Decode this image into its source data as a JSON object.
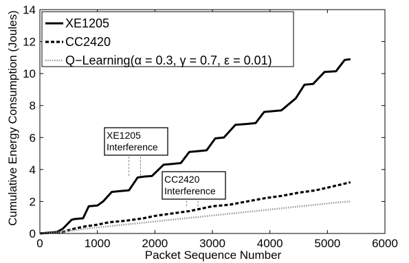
{
  "chart_data": {
    "type": "line",
    "xlabel": "Packet Sequence Number",
    "ylabel": "Cumulative Energy Consumption (Joules)",
    "xlim": [
      0,
      6000
    ],
    "ylim": [
      0,
      14
    ],
    "xticks": [
      0,
      1000,
      2000,
      3000,
      4000,
      5000,
      6000
    ],
    "yticks": [
      0,
      2,
      4,
      6,
      8,
      10,
      12,
      14
    ],
    "grid": false,
    "legend_position": "top-left",
    "series": [
      {
        "name": "XE1205",
        "style": "solid",
        "color": "#000000",
        "x": [
          0,
          300,
          400,
          550,
          600,
          750,
          850,
          1000,
          1100,
          1250,
          1400,
          1550,
          1700,
          1800,
          1950,
          2150,
          2300,
          2450,
          2600,
          2750,
          2900,
          3050,
          3200,
          3400,
          3600,
          3750,
          3900,
          4050,
          4200,
          4450,
          4600,
          4750,
          4950,
          5150,
          5300,
          5400
        ],
        "y": [
          0,
          0.1,
          0.3,
          0.85,
          0.9,
          0.95,
          1.7,
          1.75,
          2.0,
          2.6,
          2.65,
          2.7,
          3.5,
          3.55,
          3.6,
          4.3,
          4.35,
          4.4,
          5.1,
          5.15,
          5.2,
          5.95,
          6.0,
          6.8,
          6.85,
          6.9,
          7.6,
          7.65,
          7.7,
          8.45,
          9.3,
          9.35,
          10.1,
          10.15,
          10.85,
          10.9
        ]
      },
      {
        "name": "CC2420",
        "style": "dashed",
        "color": "#000000",
        "x": [
          0,
          400,
          600,
          800,
          1000,
          1200,
          1500,
          1800,
          2000,
          2300,
          2600,
          2800,
          3000,
          3300,
          3600,
          3900,
          4200,
          4500,
          4800,
          5100,
          5400
        ],
        "y": [
          0,
          0.1,
          0.3,
          0.45,
          0.55,
          0.7,
          0.8,
          0.95,
          1.1,
          1.25,
          1.4,
          1.55,
          1.7,
          1.8,
          2.0,
          2.2,
          2.35,
          2.55,
          2.7,
          2.95,
          3.2
        ]
      },
      {
        "name": "Q−Learning(α = 0.3, γ = 0.7, ε = 0.01)",
        "style": "dotted",
        "color": "#999999",
        "x": [
          0,
          400,
          800,
          1200,
          1600,
          2000,
          2400,
          2800,
          3200,
          3600,
          4000,
          4400,
          4800,
          5200,
          5400
        ],
        "y": [
          0,
          0.1,
          0.3,
          0.45,
          0.6,
          0.75,
          0.9,
          1.05,
          1.2,
          1.35,
          1.5,
          1.65,
          1.8,
          1.95,
          2.0
        ]
      }
    ],
    "annotations": [
      {
        "lines": [
          "XE1205",
          "Interference"
        ],
        "x_markers": [
          1550,
          1750
        ],
        "marker_range": [
          3.6,
          5.5
        ]
      },
      {
        "lines": [
          "CC2420",
          "Interference"
        ],
        "x_markers": [
          2550,
          2750
        ],
        "marker_range": [
          1.7,
          3.0
        ]
      }
    ]
  }
}
